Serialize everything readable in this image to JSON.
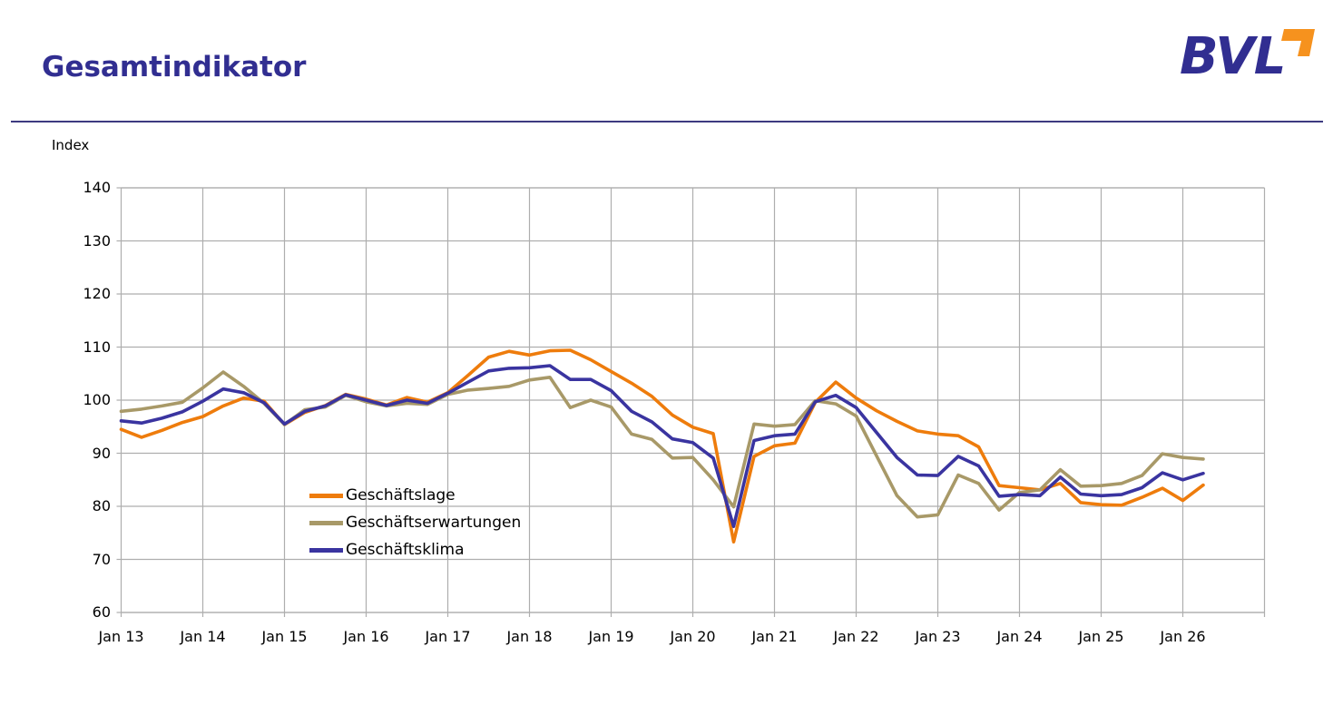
{
  "header": {
    "title": "Gesamtindikator",
    "logo_text": "BVL"
  },
  "chart": {
    "axis_title": "Index",
    "grid_color": "#aeaeae",
    "accent_blue": "#312e91",
    "logo_orange": "#f6921e"
  },
  "chart_data": {
    "type": "line",
    "title": "Gesamtindikator",
    "ylabel": "Index",
    "ylim": [
      60,
      140
    ],
    "y_ticks": [
      140,
      130,
      120,
      110,
      100,
      90,
      80,
      70,
      60
    ],
    "x_tick_labels": [
      "Jan 13",
      "Jan 14",
      "Jan 15",
      "Jan 16",
      "Jan 17",
      "Jan 18",
      "Jan 19",
      "Jan 20",
      "Jan 21",
      "Jan 22",
      "Jan 23",
      "Jan 24",
      "Jan 25",
      "Jan 26"
    ],
    "grid": true,
    "legend_position": "inside-lower-left",
    "categories": [
      "Jan 13",
      "Apr 13",
      "Jul 13",
      "Oct 13",
      "Jan 14",
      "Apr 14",
      "Jul 14",
      "Oct 14",
      "Jan 15",
      "Apr 15",
      "Jul 15",
      "Oct 15",
      "Jan 16",
      "Apr 16",
      "Jul 16",
      "Oct 16",
      "Jan 17",
      "Apr 17",
      "Jul 17",
      "Oct 17",
      "Jan 18",
      "Apr 18",
      "Jul 18",
      "Oct 18",
      "Jan 19",
      "Apr 19",
      "Jul 19",
      "Oct 19",
      "Jan 20",
      "Apr 20",
      "Jul 20",
      "Oct 20",
      "Jan 21",
      "Apr 21",
      "Jul 21",
      "Oct 21",
      "Jan 22",
      "Apr 22",
      "Jul 22",
      "Oct 22",
      "Jan 23",
      "Apr 23",
      "Jul 23",
      "Oct 23",
      "Jan 24",
      "Apr 24",
      "Jul 24",
      "Oct 24",
      "Jan 25",
      "Apr 25",
      "Jul 25",
      "Oct 25",
      "Jan 26",
      "Apr 26"
    ],
    "series": [
      {
        "name": "Geschäftslage",
        "color": "#ee7c0c",
        "values": [
          94.5,
          93.0,
          94.3,
          95.8,
          96.9,
          98.9,
          100.4,
          99.8,
          95.4,
          97.7,
          99.0,
          101.1,
          100.2,
          99.1,
          100.5,
          99.6,
          101.4,
          104.7,
          108.1,
          109.2,
          108.5,
          109.3,
          109.4,
          107.6,
          105.4,
          103.2,
          100.7,
          97.2,
          94.9,
          93.7,
          73.3,
          89.4,
          91.4,
          91.9,
          99.6,
          103.4,
          100.4,
          98.0,
          96.0,
          94.2,
          93.6,
          93.3,
          91.2,
          83.9,
          83.5,
          83.1,
          84.3,
          80.7,
          80.3,
          80.2,
          81.7,
          83.4,
          81.1,
          84.0
        ]
      },
      {
        "name": "Geschäftserwartungen",
        "color": "#a89968",
        "values": [
          97.9,
          98.3,
          98.9,
          99.6,
          102.3,
          105.3,
          102.6,
          99.4,
          95.4,
          98.2,
          98.7,
          100.9,
          99.7,
          98.9,
          99.4,
          99.2,
          101.1,
          101.9,
          102.2,
          102.6,
          103.8,
          104.3,
          98.6,
          100.0,
          98.7,
          93.6,
          92.6,
          89.1,
          89.2,
          85.0,
          79.9,
          95.5,
          95.1,
          95.4,
          99.9,
          99.3,
          97.0,
          89.5,
          82.0,
          78.0,
          78.4,
          85.9,
          84.3,
          79.3,
          82.6,
          83.1,
          86.9,
          83.8,
          83.9,
          84.3,
          85.8,
          89.9,
          89.2,
          88.9
        ]
      },
      {
        "name": "Geschäftsklima",
        "color": "#3a34a0",
        "values": [
          96.1,
          95.7,
          96.6,
          97.8,
          99.8,
          102.1,
          101.4,
          99.5,
          95.5,
          97.9,
          98.9,
          101.0,
          100.0,
          99.0,
          100.0,
          99.4,
          101.3,
          103.4,
          105.5,
          106.0,
          106.1,
          106.5,
          103.9,
          103.9,
          101.8,
          97.9,
          95.9,
          92.7,
          92.0,
          89.1,
          76.2,
          92.4,
          93.3,
          93.6,
          99.7,
          100.9,
          98.6,
          93.9,
          89.2,
          85.9,
          85.8,
          89.4,
          87.6,
          81.9,
          82.2,
          82.0,
          85.5,
          82.3,
          82.0,
          82.2,
          83.5,
          86.3,
          85.0,
          86.2
        ]
      }
    ]
  }
}
